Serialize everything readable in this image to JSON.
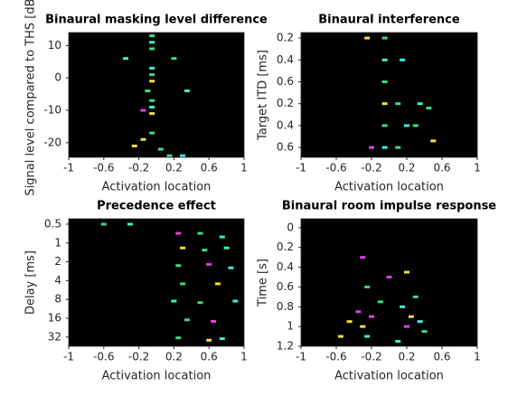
{
  "chart_data": [
    {
      "type": "scatter",
      "title": "Binaural masking level difference",
      "xlabel": "Activation location",
      "ylabel": "Signal level compared to THS [dB]",
      "xlim": [
        -1,
        1
      ],
      "xticks": [
        -1,
        -0.6,
        -0.2,
        0.2,
        0.6,
        1
      ],
      "ylim": [
        -24.5,
        14
      ],
      "yticks": [
        10,
        0,
        -10,
        -20
      ],
      "y_reversed": false,
      "y_log": false,
      "background": "#000000",
      "x": [
        -0.05,
        -0.05,
        -0.05,
        -0.05,
        -0.05,
        -0.05,
        -0.05,
        -0.05,
        -0.05,
        -0.05,
        -0.15,
        -0.15,
        -0.35,
        0.2,
        0.35,
        -0.1,
        0.15,
        0.3,
        -0.25,
        0.05
      ],
      "values": [
        13,
        11,
        9,
        3,
        1,
        -1,
        -7,
        -9,
        -11,
        -17,
        -10,
        -19,
        6,
        6,
        -4,
        -4,
        -24,
        -24,
        -21,
        -22
      ],
      "colors": [
        "#3ddc84",
        "#3cf0d0",
        "#3ddc84",
        "#3cf0d0",
        "#3ddc84",
        "#f0e040",
        "#3ddc84",
        "#3cf0d0",
        "#f0e040",
        "#3ddc84",
        "#e040e0",
        "#f0e040",
        "#3cf0d0",
        "#3ddc84",
        "#3cf0d0",
        "#3ddc84",
        "#3ddc84",
        "#3cf0d0",
        "#f0e040",
        "#3ddc84"
      ]
    },
    {
      "type": "scatter",
      "title": "Binaural interference",
      "xlabel": "Activation location",
      "ylabel": "Target ITD [ms]",
      "xlim": [
        -1,
        1
      ],
      "xticks": [
        -1,
        -0.6,
        -0.2,
        0.2,
        0.6,
        1
      ],
      "ylim": [
        0.75,
        6.45
      ],
      "yticks": [
        {
          "value": 1,
          "label": "0.2"
        },
        {
          "value": 2,
          "label": "0.4"
        },
        {
          "value": 3,
          "label": "0.6"
        },
        {
          "value": 4,
          "label": "0.2"
        },
        {
          "value": 5,
          "label": "0.4"
        },
        {
          "value": 6,
          "label": "0.6"
        }
      ],
      "y_reversed": true,
      "y_log": false,
      "background": "#000000",
      "x": [
        -0.05,
        -0.05,
        -0.05,
        -0.05,
        -0.05,
        -0.05,
        -0.25,
        0.1,
        0.35,
        0.45,
        0.2,
        0.3,
        -0.2,
        0.1,
        0.15,
        0.5
      ],
      "values": [
        1,
        2,
        3,
        4,
        5,
        6,
        1,
        4,
        4,
        4.2,
        5,
        5,
        6,
        6,
        2,
        5.7
      ],
      "colors": [
        "#3ddc84",
        "#3cf0d0",
        "#3ddc84",
        "#f0e040",
        "#3ddc84",
        "#3cf0d0",
        "#f0e040",
        "#3ddc84",
        "#3cf0d0",
        "#3ddc84",
        "#3cf0d0",
        "#3ddc84",
        "#e040e0",
        "#3ddc84",
        "#3cf0d0",
        "#f0e040"
      ]
    },
    {
      "type": "scatter",
      "title": "Precedence effect",
      "xlabel": "Activation location",
      "ylabel": "Delay [ms]",
      "xlim": [
        -1,
        1
      ],
      "xticks": [
        -1,
        -0.6,
        -0.2,
        0.2,
        0.6,
        1
      ],
      "ylim": [
        0.41,
        45
      ],
      "yticks": [
        0.5,
        1,
        2,
        4,
        8,
        16,
        32
      ],
      "y_reversed": true,
      "y_log": true,
      "background": "#000000",
      "x": [
        0.25,
        0.5,
        0.75,
        0.3,
        0.55,
        0.8,
        0.25,
        0.6,
        0.85,
        0.3,
        0.7,
        0.2,
        0.5,
        0.9,
        0.35,
        0.65,
        0.25,
        0.75,
        0.6,
        -0.6,
        -0.3
      ],
      "values": [
        0.7,
        0.7,
        0.8,
        1.2,
        1.3,
        1.2,
        2.3,
        2.2,
        2.5,
        4.5,
        4.5,
        8.5,
        9,
        8.5,
        17,
        18,
        33,
        34,
        36,
        0.5,
        0.5
      ],
      "colors": [
        "#e040e0",
        "#3ddc84",
        "#3cf0d0",
        "#f0e040",
        "#3ddc84",
        "#3cf0d0",
        "#3ddc84",
        "#e040e0",
        "#3cf0d0",
        "#3ddc84",
        "#f0e040",
        "#3cf0d0",
        "#3ddc84",
        "#3cf0d0",
        "#3ddc84",
        "#e040e0",
        "#3ddc84",
        "#3cf0d0",
        "#f0e040",
        "#3ddc84",
        "#3cf0d0"
      ]
    },
    {
      "type": "scatter",
      "title": "Binaural room impulse response",
      "xlabel": "Activation location",
      "ylabel": "Time [s]",
      "xlim": [
        -1,
        1
      ],
      "xticks": [
        -1,
        -0.6,
        -0.2,
        0.2,
        0.6,
        1
      ],
      "ylim": [
        -0.09,
        1.2
      ],
      "yticks": [
        0,
        0.2,
        0.4,
        0.6,
        0.8,
        1,
        1.2
      ],
      "y_reversed": true,
      "y_log": false,
      "background": "#000000",
      "x": [
        -0.35,
        -0.3,
        -0.25,
        -0.25,
        -0.2,
        -0.45,
        -0.1,
        0.15,
        0.2,
        0.25,
        0.35,
        0.4,
        -0.55,
        0.0,
        0.1,
        0.3,
        -0.3,
        0.2
      ],
      "values": [
        0.85,
        1.0,
        0.6,
        1.1,
        0.9,
        0.95,
        0.75,
        0.8,
        1.0,
        0.9,
        0.95,
        1.05,
        1.1,
        0.5,
        1.15,
        0.7,
        0.3,
        0.45
      ],
      "colors": [
        "#e040e0",
        "#f0e040",
        "#3ddc84",
        "#3cf0d0",
        "#e040e0",
        "#f0e040",
        "#3ddc84",
        "#3cf0d0",
        "#e040e0",
        "#f0e040",
        "#3cf0d0",
        "#3ddc84",
        "#f0e040",
        "#e040e0",
        "#3cf0d0",
        "#3ddc84",
        "#e040e0",
        "#f0e040"
      ]
    }
  ]
}
